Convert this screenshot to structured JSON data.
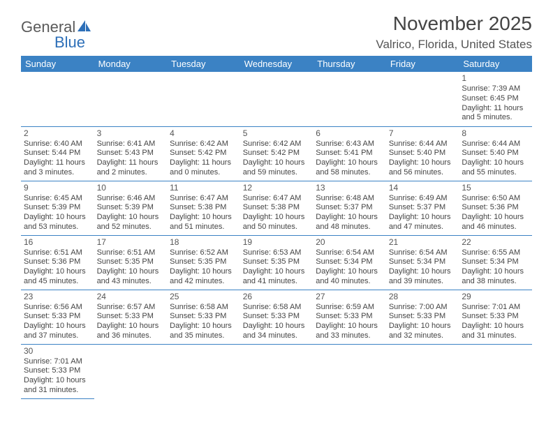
{
  "logo": {
    "part1": "General",
    "part2": "Blue"
  },
  "header": {
    "title": "November 2025",
    "location": "Valrico, Florida, United States"
  },
  "colors": {
    "header_bg": "#3b82c4",
    "header_text": "#ffffff",
    "border": "#3b82c4",
    "text": "#444444",
    "logo_gray": "#5a5a5a",
    "logo_blue": "#2d6fb8"
  },
  "dayHeaders": [
    "Sunday",
    "Monday",
    "Tuesday",
    "Wednesday",
    "Thursday",
    "Friday",
    "Saturday"
  ],
  "weeks": [
    [
      null,
      null,
      null,
      null,
      null,
      null,
      {
        "n": "1",
        "sr": "Sunrise: 7:39 AM",
        "ss": "Sunset: 6:45 PM",
        "d1": "Daylight: 11 hours",
        "d2": "and 5 minutes."
      }
    ],
    [
      {
        "n": "2",
        "sr": "Sunrise: 6:40 AM",
        "ss": "Sunset: 5:44 PM",
        "d1": "Daylight: 11 hours",
        "d2": "and 3 minutes."
      },
      {
        "n": "3",
        "sr": "Sunrise: 6:41 AM",
        "ss": "Sunset: 5:43 PM",
        "d1": "Daylight: 11 hours",
        "d2": "and 2 minutes."
      },
      {
        "n": "4",
        "sr": "Sunrise: 6:42 AM",
        "ss": "Sunset: 5:42 PM",
        "d1": "Daylight: 11 hours",
        "d2": "and 0 minutes."
      },
      {
        "n": "5",
        "sr": "Sunrise: 6:42 AM",
        "ss": "Sunset: 5:42 PM",
        "d1": "Daylight: 10 hours",
        "d2": "and 59 minutes."
      },
      {
        "n": "6",
        "sr": "Sunrise: 6:43 AM",
        "ss": "Sunset: 5:41 PM",
        "d1": "Daylight: 10 hours",
        "d2": "and 58 minutes."
      },
      {
        "n": "7",
        "sr": "Sunrise: 6:44 AM",
        "ss": "Sunset: 5:40 PM",
        "d1": "Daylight: 10 hours",
        "d2": "and 56 minutes."
      },
      {
        "n": "8",
        "sr": "Sunrise: 6:44 AM",
        "ss": "Sunset: 5:40 PM",
        "d1": "Daylight: 10 hours",
        "d2": "and 55 minutes."
      }
    ],
    [
      {
        "n": "9",
        "sr": "Sunrise: 6:45 AM",
        "ss": "Sunset: 5:39 PM",
        "d1": "Daylight: 10 hours",
        "d2": "and 53 minutes."
      },
      {
        "n": "10",
        "sr": "Sunrise: 6:46 AM",
        "ss": "Sunset: 5:39 PM",
        "d1": "Daylight: 10 hours",
        "d2": "and 52 minutes."
      },
      {
        "n": "11",
        "sr": "Sunrise: 6:47 AM",
        "ss": "Sunset: 5:38 PM",
        "d1": "Daylight: 10 hours",
        "d2": "and 51 minutes."
      },
      {
        "n": "12",
        "sr": "Sunrise: 6:47 AM",
        "ss": "Sunset: 5:38 PM",
        "d1": "Daylight: 10 hours",
        "d2": "and 50 minutes."
      },
      {
        "n": "13",
        "sr": "Sunrise: 6:48 AM",
        "ss": "Sunset: 5:37 PM",
        "d1": "Daylight: 10 hours",
        "d2": "and 48 minutes."
      },
      {
        "n": "14",
        "sr": "Sunrise: 6:49 AM",
        "ss": "Sunset: 5:37 PM",
        "d1": "Daylight: 10 hours",
        "d2": "and 47 minutes."
      },
      {
        "n": "15",
        "sr": "Sunrise: 6:50 AM",
        "ss": "Sunset: 5:36 PM",
        "d1": "Daylight: 10 hours",
        "d2": "and 46 minutes."
      }
    ],
    [
      {
        "n": "16",
        "sr": "Sunrise: 6:51 AM",
        "ss": "Sunset: 5:36 PM",
        "d1": "Daylight: 10 hours",
        "d2": "and 45 minutes."
      },
      {
        "n": "17",
        "sr": "Sunrise: 6:51 AM",
        "ss": "Sunset: 5:35 PM",
        "d1": "Daylight: 10 hours",
        "d2": "and 43 minutes."
      },
      {
        "n": "18",
        "sr": "Sunrise: 6:52 AM",
        "ss": "Sunset: 5:35 PM",
        "d1": "Daylight: 10 hours",
        "d2": "and 42 minutes."
      },
      {
        "n": "19",
        "sr": "Sunrise: 6:53 AM",
        "ss": "Sunset: 5:35 PM",
        "d1": "Daylight: 10 hours",
        "d2": "and 41 minutes."
      },
      {
        "n": "20",
        "sr": "Sunrise: 6:54 AM",
        "ss": "Sunset: 5:34 PM",
        "d1": "Daylight: 10 hours",
        "d2": "and 40 minutes."
      },
      {
        "n": "21",
        "sr": "Sunrise: 6:54 AM",
        "ss": "Sunset: 5:34 PM",
        "d1": "Daylight: 10 hours",
        "d2": "and 39 minutes."
      },
      {
        "n": "22",
        "sr": "Sunrise: 6:55 AM",
        "ss": "Sunset: 5:34 PM",
        "d1": "Daylight: 10 hours",
        "d2": "and 38 minutes."
      }
    ],
    [
      {
        "n": "23",
        "sr": "Sunrise: 6:56 AM",
        "ss": "Sunset: 5:33 PM",
        "d1": "Daylight: 10 hours",
        "d2": "and 37 minutes."
      },
      {
        "n": "24",
        "sr": "Sunrise: 6:57 AM",
        "ss": "Sunset: 5:33 PM",
        "d1": "Daylight: 10 hours",
        "d2": "and 36 minutes."
      },
      {
        "n": "25",
        "sr": "Sunrise: 6:58 AM",
        "ss": "Sunset: 5:33 PM",
        "d1": "Daylight: 10 hours",
        "d2": "and 35 minutes."
      },
      {
        "n": "26",
        "sr": "Sunrise: 6:58 AM",
        "ss": "Sunset: 5:33 PM",
        "d1": "Daylight: 10 hours",
        "d2": "and 34 minutes."
      },
      {
        "n": "27",
        "sr": "Sunrise: 6:59 AM",
        "ss": "Sunset: 5:33 PM",
        "d1": "Daylight: 10 hours",
        "d2": "and 33 minutes."
      },
      {
        "n": "28",
        "sr": "Sunrise: 7:00 AM",
        "ss": "Sunset: 5:33 PM",
        "d1": "Daylight: 10 hours",
        "d2": "and 32 minutes."
      },
      {
        "n": "29",
        "sr": "Sunrise: 7:01 AM",
        "ss": "Sunset: 5:33 PM",
        "d1": "Daylight: 10 hours",
        "d2": "and 31 minutes."
      }
    ],
    [
      {
        "n": "30",
        "sr": "Sunrise: 7:01 AM",
        "ss": "Sunset: 5:33 PM",
        "d1": "Daylight: 10 hours",
        "d2": "and 31 minutes."
      },
      null,
      null,
      null,
      null,
      null,
      null
    ]
  ]
}
